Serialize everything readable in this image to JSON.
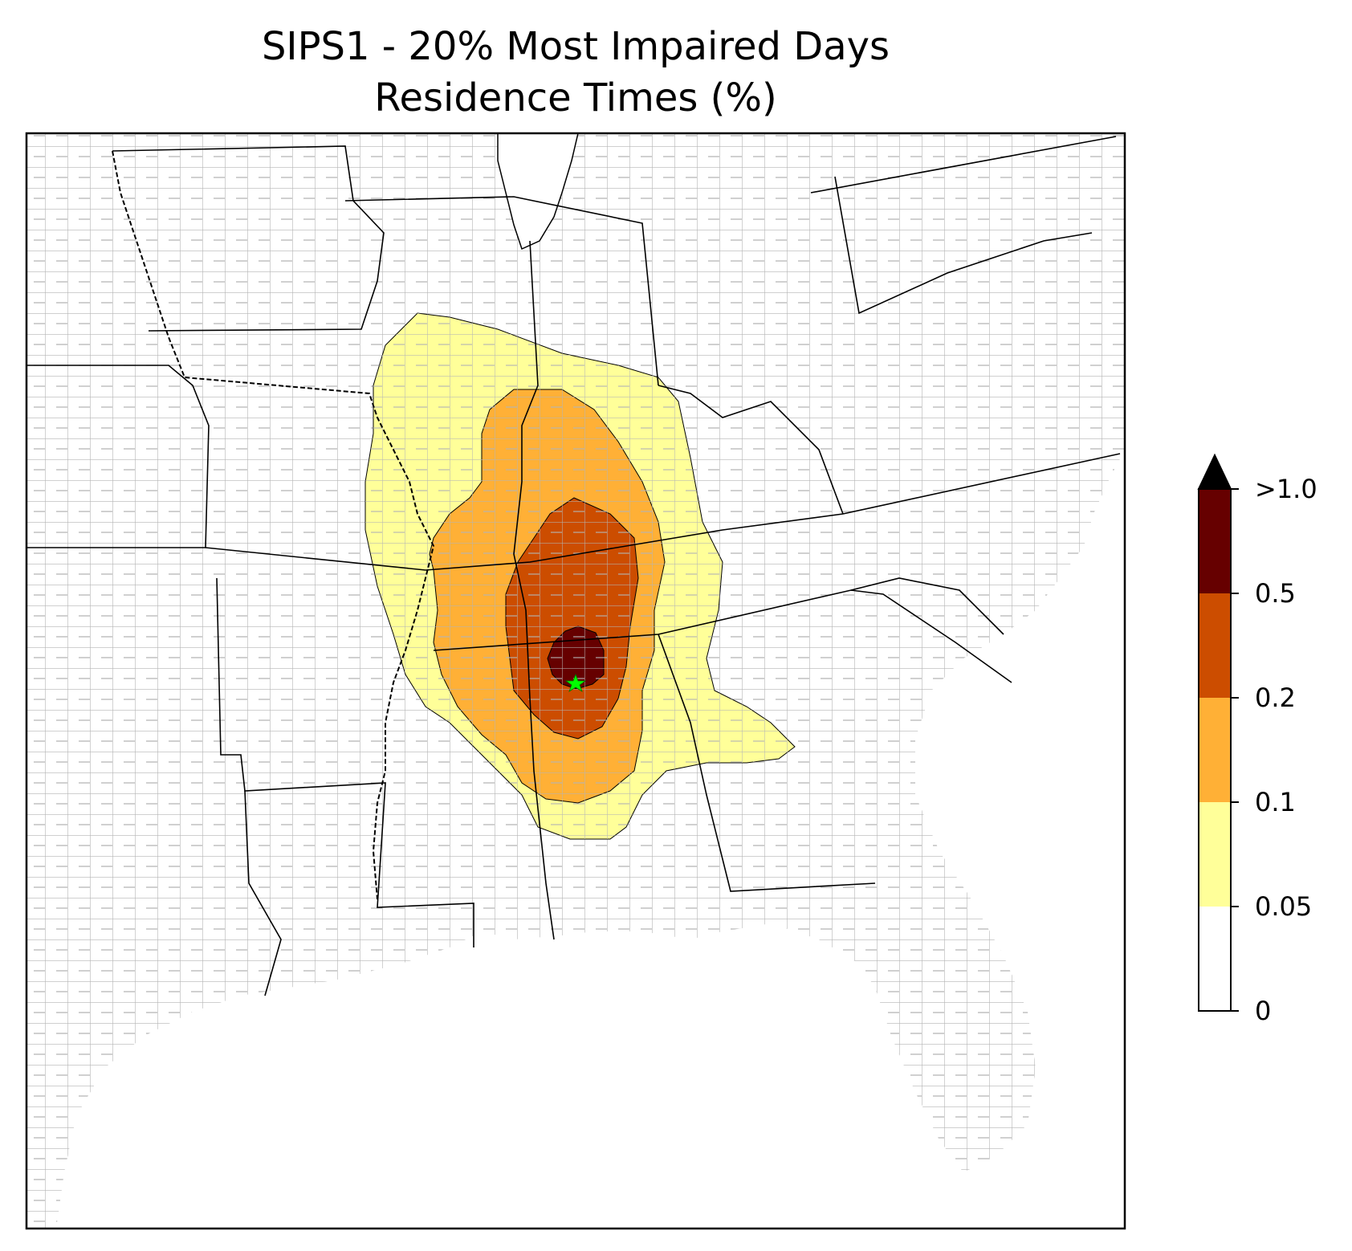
{
  "title": {
    "line1": "SIPS1 - 20% Most Impaired Days",
    "line2": "Residence Times (%)"
  },
  "colorbar": {
    "levels": [
      {
        "label": "0",
        "color": "#ffffff"
      },
      {
        "label": "0.05",
        "color": "#ffff99"
      },
      {
        "label": "0.1",
        "color": "#ffb036"
      },
      {
        "label": "0.2",
        "color": "#cc4d00"
      },
      {
        "label": "0.5",
        "color": "#660000"
      },
      {
        "label": ">1.0",
        "color": "#000000"
      }
    ],
    "extend": "max"
  },
  "map": {
    "region": "Southeastern United States",
    "state_line_color": "#000000",
    "county_line_color": "#a0a0a0",
    "source_marker_color": "#00ff00",
    "source_marker_icon": "star-icon"
  }
}
